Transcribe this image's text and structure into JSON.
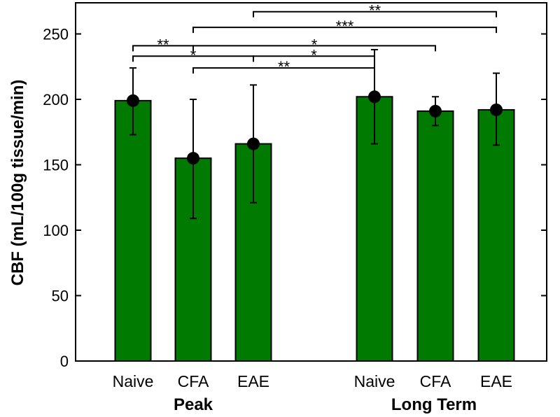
{
  "chart_data": {
    "type": "bar",
    "title": "",
    "xlabel": "",
    "ylabel": "CBF (mL/100g tissue/min)",
    "ylim": [
      0,
      270
    ],
    "yticks": [
      0,
      50,
      100,
      150,
      200,
      250
    ],
    "ytick_labels": [
      "0",
      "50",
      "100",
      "150",
      "200",
      "250"
    ],
    "bar_color": "#007a00",
    "marker_color": "#000000",
    "groups": [
      {
        "name": "Peak",
        "categories": [
          "Naive",
          "CFA",
          "EAE"
        ]
      },
      {
        "name": "Long Term",
        "categories": [
          "Naive",
          "CFA",
          "EAE"
        ]
      }
    ],
    "bars": [
      {
        "group": 0,
        "category": "Naive",
        "value": 199,
        "err_low": 173,
        "err_high": 224
      },
      {
        "group": 0,
        "category": "CFA",
        "value": 155,
        "err_low": 109,
        "err_high": 200
      },
      {
        "group": 0,
        "category": "EAE",
        "value": 166,
        "err_low": 121,
        "err_high": 211
      },
      {
        "group": 1,
        "category": "Naive",
        "value": 202,
        "err_low": 166,
        "err_high": 238
      },
      {
        "group": 1,
        "category": "CFA",
        "value": 191,
        "err_low": 180,
        "err_high": 202
      },
      {
        "group": 1,
        "category": "EAE",
        "value": 192,
        "err_low": 165,
        "err_high": 220
      }
    ],
    "significance": [
      {
        "from": 0,
        "to": 1,
        "level": 241,
        "label": "**"
      },
      {
        "from": 0,
        "to": 2,
        "level": 233,
        "label": "*"
      },
      {
        "from": 2,
        "to": 3,
        "level": 233,
        "label": "*"
      },
      {
        "from": 1,
        "to": 3,
        "level": 224,
        "label": "**"
      },
      {
        "from": 1,
        "to": 4,
        "level": 241,
        "label": "*"
      },
      {
        "from": 1,
        "to": 5,
        "level": 255,
        "label": "***"
      },
      {
        "from": 2,
        "to": 5,
        "level": 267,
        "label": "**"
      }
    ]
  }
}
